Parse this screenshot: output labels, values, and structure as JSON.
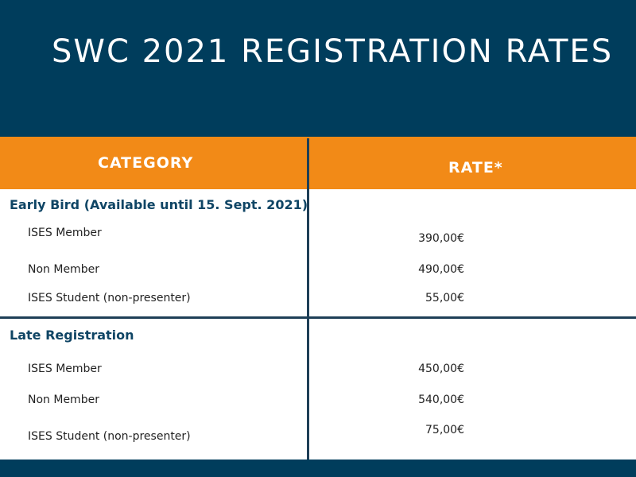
{
  "title": "SWC 2021 REGISTRATION RATES",
  "columns": {
    "category": "CATEGORY",
    "rate": "RATE*"
  },
  "sections": [
    {
      "title": "Early Bird (Available until 15. Sept. 2021)",
      "rows": [
        {
          "label": "ISES Member",
          "rate": "390,00€"
        },
        {
          "label": "Non Member",
          "rate": "490,00€"
        },
        {
          "label": "ISES Student (non-presenter)",
          "rate": "55,00€"
        }
      ]
    },
    {
      "title": "Late Registration",
      "rows": [
        {
          "label": "ISES Member",
          "rate": "450,00€"
        },
        {
          "label": "Non Member",
          "rate": "540,00€"
        },
        {
          "label": "ISES Student (non-presenter)",
          "rate": "75,00€"
        }
      ]
    }
  ],
  "colors": {
    "navy": "#003d5c",
    "orange": "#f28a17",
    "divider": "#1e3f57"
  }
}
